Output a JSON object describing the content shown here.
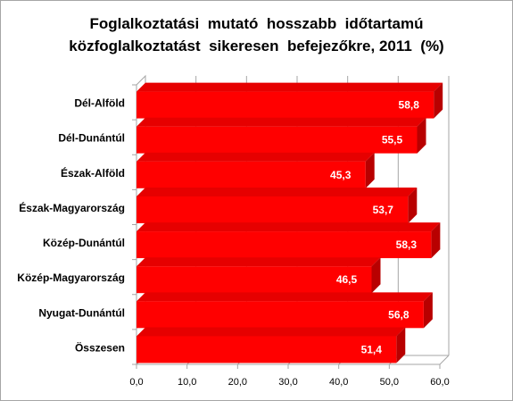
{
  "chart_data": {
    "type": "bar",
    "orientation": "horizontal",
    "style": "3d",
    "title_lines": [
      "Foglalkoztatási  mutató  hosszabb  időtartamú",
      "közfoglalkoztatást  sikeresen  befejezőkre, 2011  (%)"
    ],
    "categories": [
      "Dél-Alföld",
      "Dél-Dunántúl",
      "Észak-Alföld",
      "Észak-Magyarország",
      "Közép-Dunántúl",
      "Közép-Magyarország",
      "Nyugat-Dunántúl",
      "Összesen"
    ],
    "values": [
      58.8,
      55.5,
      45.3,
      53.7,
      58.3,
      46.5,
      56.8,
      51.4
    ],
    "data_labels": [
      "58,8",
      "55,5",
      "45,3",
      "53,7",
      "58,3",
      "46,5",
      "56,8",
      "51,4"
    ],
    "x_ticks": [
      "0,0",
      "10,0",
      "20,0",
      "30,0",
      "40,0",
      "50,0",
      "60,0"
    ],
    "x_tick_values": [
      0,
      10,
      20,
      30,
      40,
      50,
      60
    ],
    "xlim": [
      0,
      60
    ],
    "xlabel": "",
    "ylabel": "",
    "grid": true,
    "legend": "none",
    "colors": {
      "bar_front": "#ff0000",
      "bar_top": "#e60000",
      "bar_side": "#b80000",
      "label_text": "#ffffff",
      "grid": "#a6a6a6"
    }
  }
}
